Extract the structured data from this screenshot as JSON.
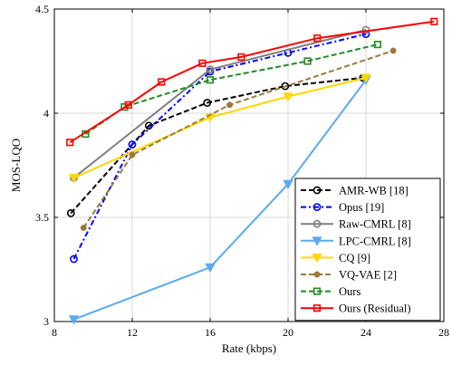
{
  "chart_data": {
    "type": "line",
    "xlabel": "Rate (kbps)",
    "ylabel": "MOS-LQO",
    "xlim": [
      8,
      28
    ],
    "ylim": [
      3,
      4.5
    ],
    "xticks": [
      "8",
      "12",
      "16",
      "20",
      "24",
      "28"
    ],
    "yticks": [
      "3",
      "3.5",
      "4",
      "4.5"
    ],
    "grid": true,
    "legend_position": "bottom-right",
    "series": [
      {
        "name": "AMR-WB [18]",
        "color": "#000000",
        "dash": "dash",
        "marker": "circle",
        "x": [
          8.85,
          12.85,
          15.85,
          19.85,
          23.85
        ],
        "y": [
          3.52,
          3.94,
          4.05,
          4.13,
          4.17
        ]
      },
      {
        "name": "Opus [19]",
        "color": "#0000ff",
        "dash": "dashdot",
        "marker": "circle",
        "x": [
          9,
          12,
          16,
          20,
          24
        ],
        "y": [
          3.3,
          3.85,
          4.2,
          4.29,
          4.38
        ]
      },
      {
        "name": "Raw-CMRL [8]",
        "color": "#7f7f7f",
        "dash": "solid",
        "marker": "circle",
        "x": [
          9,
          16,
          24
        ],
        "y": [
          3.69,
          4.21,
          4.4
        ]
      },
      {
        "name": "LPC-CMRL [8]",
        "color": "#5aa9ef",
        "dash": "solid",
        "marker": "triangle-down",
        "x": [
          9,
          16,
          20,
          24
        ],
        "y": [
          3.01,
          3.26,
          3.66,
          4.16
        ]
      },
      {
        "name": "CQ [9]",
        "color": "#ffd700",
        "dash": "solid",
        "marker": "triangle-down",
        "x": [
          9,
          16,
          20,
          24
        ],
        "y": [
          3.69,
          3.98,
          4.08,
          4.17
        ]
      },
      {
        "name": "VQ-VAE [2]",
        "color": "#9a7a3c",
        "dash": "dash",
        "marker": "dot",
        "x": [
          9.5,
          12,
          17,
          25.4
        ],
        "y": [
          3.45,
          3.8,
          4.04,
          4.3
        ]
      },
      {
        "name": "Ours",
        "color": "#228b22",
        "dash": "dash",
        "marker": "square",
        "x": [
          9.6,
          11.6,
          16,
          21,
          24.6
        ],
        "y": [
          3.9,
          4.03,
          4.16,
          4.25,
          4.33
        ]
      },
      {
        "name": "Ours (Residual)",
        "color": "#ff0000",
        "dash": "solid",
        "marker": "square",
        "x": [
          8.8,
          11.8,
          13.5,
          15.6,
          17.6,
          21.5,
          27.5
        ],
        "y": [
          3.86,
          4.04,
          4.15,
          4.24,
          4.27,
          4.36,
          4.44
        ]
      }
    ]
  }
}
